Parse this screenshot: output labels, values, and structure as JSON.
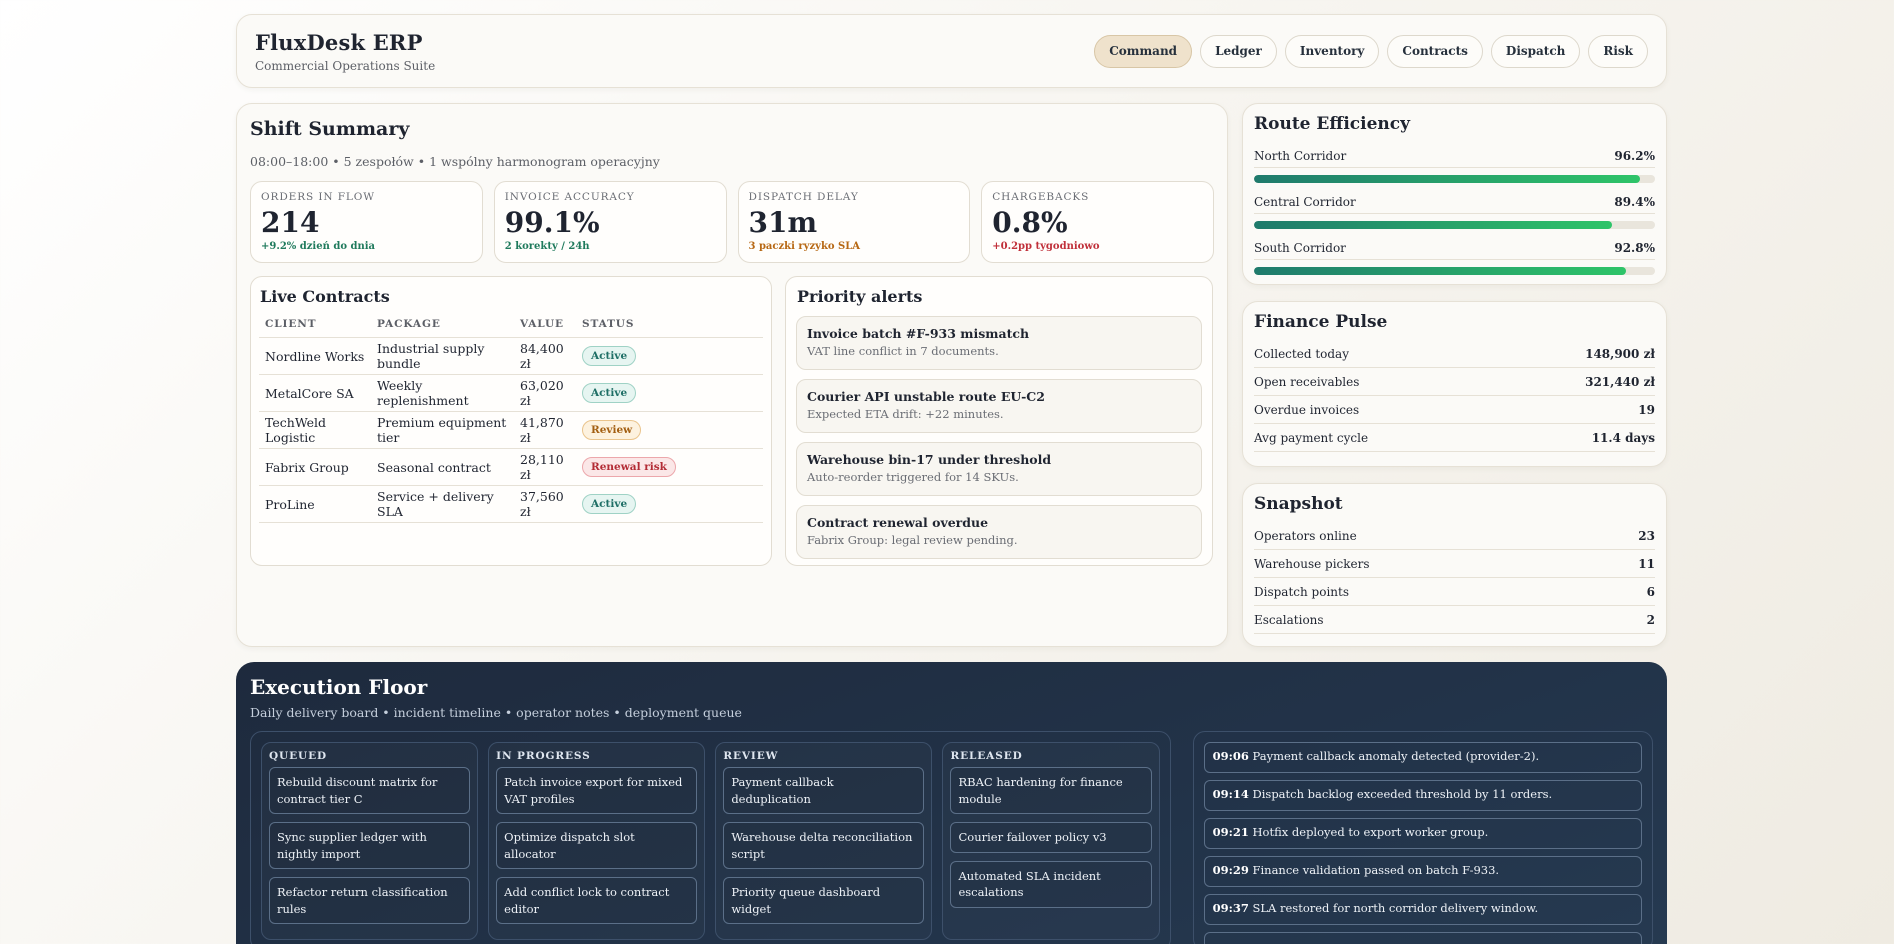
{
  "header": {
    "app_title": "FluxDesk ERP",
    "app_subtitle": "Commercial Operations Suite",
    "nav": [
      "Command",
      "Ledger",
      "Inventory",
      "Contracts",
      "Dispatch",
      "Risk"
    ],
    "active_nav": "Command"
  },
  "shift": {
    "title": "Shift Summary",
    "meta": "08:00–18:00 • 5 zespołów • 1 wspólny harmonogram operacyjny",
    "kpis": [
      {
        "label": "ORDERS IN FLOW",
        "value": "214",
        "note": "+9.2% dzień do dnia",
        "tone": "green"
      },
      {
        "label": "INVOICE ACCURACY",
        "value": "99.1%",
        "note": "2 korekty / 24h",
        "tone": "green"
      },
      {
        "label": "DISPATCH DELAY",
        "value": "31m",
        "note": "3 paczki ryzyko SLA",
        "tone": "orange"
      },
      {
        "label": "CHARGEBACKS",
        "value": "0.8%",
        "note": "+0.2pp tygodniowo",
        "tone": "red"
      }
    ]
  },
  "contracts": {
    "title": "Live Contracts",
    "columns": [
      "CLIENT",
      "PACKAGE",
      "VALUE",
      "STATUS"
    ],
    "rows": [
      {
        "client": "Nordline Works",
        "package": "Industrial supply bundle",
        "value": "84,400 zł",
        "status": "Active",
        "kind": "active"
      },
      {
        "client": "MetalCore SA",
        "package": "Weekly replenishment",
        "value": "63,020 zł",
        "status": "Active",
        "kind": "active"
      },
      {
        "client": "TechWeld Logistic",
        "package": "Premium equipment tier",
        "value": "41,870 zł",
        "status": "Review",
        "kind": "review"
      },
      {
        "client": "Fabrix Group",
        "package": "Seasonal contract",
        "value": "28,110 zł",
        "status": "Renewal risk",
        "kind": "risk"
      },
      {
        "client": "ProLine",
        "package": "Service + delivery SLA",
        "value": "37,560 zł",
        "status": "Active",
        "kind": "active"
      }
    ]
  },
  "alerts": {
    "title": "Priority alerts",
    "items": [
      {
        "title": "Invoice batch #F-933 mismatch",
        "detail": "VAT line conflict in 7 documents."
      },
      {
        "title": "Courier API unstable route EU-C2",
        "detail": "Expected ETA drift: +22 minutes."
      },
      {
        "title": "Warehouse bin-17 under threshold",
        "detail": "Auto-reorder triggered for 14 SKUs."
      },
      {
        "title": "Contract renewal overdue",
        "detail": "Fabrix Group: legal review pending."
      }
    ]
  },
  "route": {
    "title": "Route Efficiency",
    "items": [
      {
        "name": "North Corridor",
        "value": "96.2%",
        "percent": 96.2
      },
      {
        "name": "Central Corridor",
        "value": "89.4%",
        "percent": 89.4
      },
      {
        "name": "South Corridor",
        "value": "92.8%",
        "percent": 92.8
      }
    ]
  },
  "finance": {
    "title": "Finance Pulse",
    "items": [
      {
        "label": "Collected today",
        "value": "148,900 zł"
      },
      {
        "label": "Open receivables",
        "value": "321,440 zł"
      },
      {
        "label": "Overdue invoices",
        "value": "19"
      },
      {
        "label": "Avg payment cycle",
        "value": "11.4 days"
      }
    ]
  },
  "snapshot": {
    "title": "Snapshot",
    "items": [
      {
        "label": "Operators online",
        "value": "23"
      },
      {
        "label": "Warehouse pickers",
        "value": "11"
      },
      {
        "label": "Dispatch points",
        "value": "6"
      },
      {
        "label": "Escalations",
        "value": "2"
      }
    ]
  },
  "execution": {
    "title": "Execution Floor",
    "subtitle": "Daily delivery board • incident timeline • operator notes • deployment queue",
    "columns": [
      {
        "name": "QUEUED",
        "tasks": [
          "Rebuild discount matrix for contract tier C",
          "Sync supplier ledger with nightly import",
          "Refactor return classification rules"
        ]
      },
      {
        "name": "IN PROGRESS",
        "tasks": [
          "Patch invoice export for mixed VAT profiles",
          "Optimize dispatch slot allocator",
          "Add conflict lock to contract editor"
        ]
      },
      {
        "name": "REVIEW",
        "tasks": [
          "Payment callback deduplication",
          "Warehouse delta reconciliation script",
          "Priority queue dashboard widget"
        ]
      },
      {
        "name": "RELEASED",
        "tasks": [
          "RBAC hardening for finance module",
          "Courier failover policy v3",
          "Automated SLA incident escalations"
        ]
      }
    ],
    "timeline": [
      {
        "time": "09:06",
        "text": "Payment callback anomaly detected (provider-2)."
      },
      {
        "time": "09:14",
        "text": "Dispatch backlog exceeded threshold by 11 orders."
      },
      {
        "time": "09:21",
        "text": "Hotfix deployed to export worker group."
      },
      {
        "time": "09:29",
        "text": "Finance validation passed on batch F-933."
      },
      {
        "time": "09:37",
        "text": "SLA restored for north corridor delivery window."
      }
    ]
  },
  "colors": {
    "accent_nav": "#efe2cc",
    "positive": "#1f7a5c",
    "warning": "#b76814",
    "negative": "#c0303a",
    "exec_bg": "#1e2a3d"
  }
}
